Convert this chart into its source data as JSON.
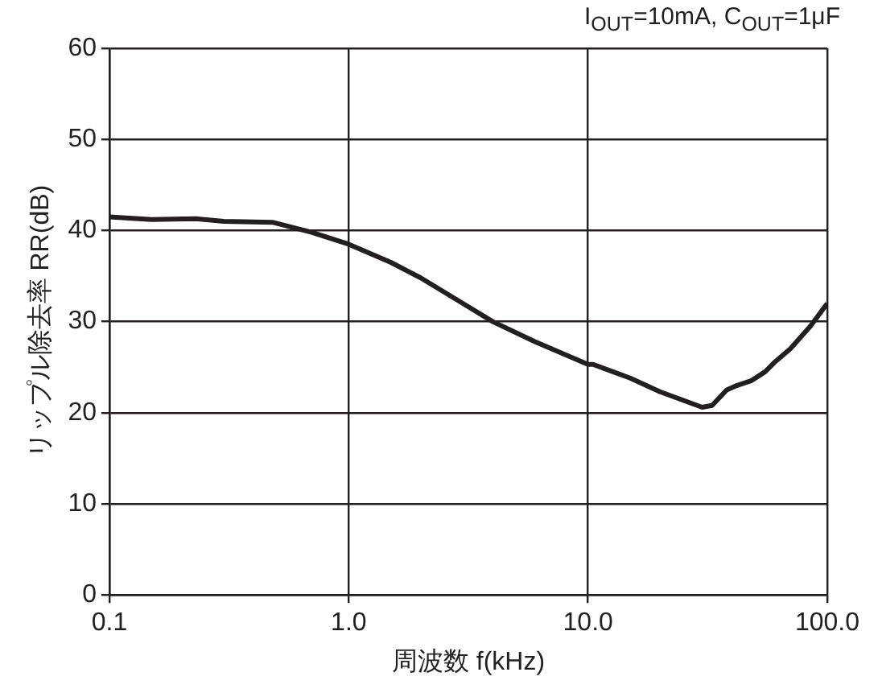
{
  "chart_data": {
    "type": "line",
    "title": "I$_{OUT}$=10mA, C$_{OUT}$=1μF",
    "xlabel": "周波数 f(kHz)",
    "ylabel": "リップル除去率 RR(dB)",
    "log": "x",
    "grid": true,
    "legend": false,
    "marker": "none",
    "line_style": "solid",
    "xlim": [
      0.1,
      100
    ],
    "xticks": [
      {
        "value": 0.1,
        "label": "0.1"
      },
      {
        "value": 1,
        "label": "1.0"
      },
      {
        "value": 10,
        "label": "10.0"
      },
      {
        "value": 100,
        "label": "100.0"
      }
    ],
    "ylim": [
      0,
      60
    ],
    "yticks": [
      0,
      10,
      20,
      30,
      40,
      50,
      60
    ],
    "series": [
      {
        "color": "#231f20",
        "x": [
          0.1,
          0.15,
          0.23,
          0.3,
          0.48,
          0.7,
          1.0,
          1.5,
          2,
          3,
          4,
          6,
          10,
          10.5,
          15,
          20,
          30,
          33,
          38,
          42,
          48,
          55,
          60,
          70,
          85,
          100
        ],
        "values": [
          41.5,
          41.2,
          41.3,
          41.0,
          40.9,
          39.8,
          38.5,
          36.5,
          34.8,
          32,
          30,
          27.8,
          25.3,
          25.3,
          23.8,
          22.3,
          20.6,
          20.8,
          22.5,
          23,
          23.5,
          24.5,
          25.5,
          27,
          29.5,
          32
        ]
      }
    ]
  }
}
